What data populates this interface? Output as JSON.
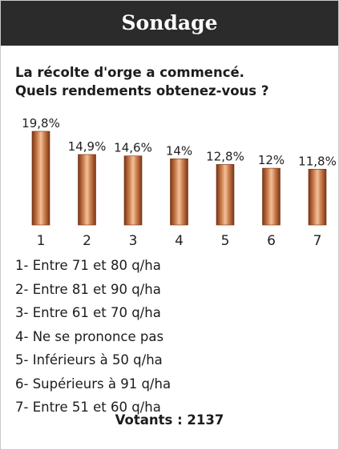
{
  "header": {
    "title": "Sondage"
  },
  "question": {
    "line1": "La récolte d'orge a commencé.",
    "line2": "Quels rendements obtenez-vous ?"
  },
  "chart_data": {
    "type": "bar",
    "categories": [
      "1",
      "2",
      "3",
      "4",
      "5",
      "6",
      "7"
    ],
    "values": [
      19.8,
      14.9,
      14.6,
      14,
      12.8,
      12,
      11.8
    ],
    "value_labels": [
      "19,8%",
      "14,9%",
      "14,6%",
      "14%",
      "12,8%",
      "12%",
      "11,8%"
    ],
    "ylim": [
      0,
      19.8
    ],
    "grid": false,
    "legend": "none",
    "bar_color": "#b9673b"
  },
  "legend": {
    "items": [
      "1- Entre 71 et 80 q/ha",
      "2- Entre 81 et 90 q/ha",
      "3- Entre 61 et 70 q/ha",
      "4- Ne se prononce pas",
      "5- Inférieurs à 50 q/ha",
      "6- Supérieurs à 91 q/ha",
      "7- Entre 51 et 60 q/ha"
    ]
  },
  "votes": {
    "label": "Votants : 2137"
  }
}
